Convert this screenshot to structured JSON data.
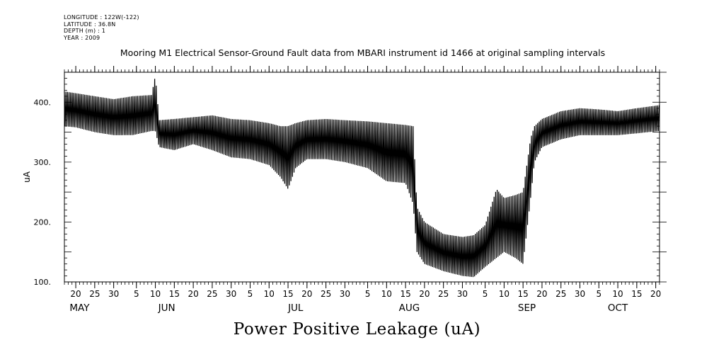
{
  "metadata": {
    "longitude": "LONGITUDE : 122W(-122)",
    "latitude": "LATITUDE : 36.8N",
    "depth": "DEPTH (m) : 1",
    "year": "YEAR : 2009"
  },
  "chart_data": {
    "type": "line",
    "title": "Mooring M1 Electrical Sensor-Ground Fault data from MBARI instrument id 1466 at original sampling intervals",
    "bottom_title": "Power Positive Leakage (uA)",
    "ylabel": "uA",
    "xlabel": "",
    "ylim": [
      100,
      450
    ],
    "yticks": [
      100,
      200,
      300,
      400
    ],
    "ytick_labels": [
      "100.",
      "200.",
      "300.",
      "400."
    ],
    "xlim": [
      "2009-05-17",
      "2009-10-21"
    ],
    "day_ticks": [
      "2009-05-20",
      "2009-05-25",
      "2009-05-30",
      "2009-06-05",
      "2009-06-10",
      "2009-06-15",
      "2009-06-20",
      "2009-06-25",
      "2009-06-30",
      "2009-07-05",
      "2009-07-10",
      "2009-07-15",
      "2009-07-20",
      "2009-07-25",
      "2009-07-30",
      "2009-08-05",
      "2009-08-10",
      "2009-08-15",
      "2009-08-20",
      "2009-08-25",
      "2009-08-30",
      "2009-09-05",
      "2009-09-10",
      "2009-09-15",
      "2009-09-20",
      "2009-09-25",
      "2009-09-30",
      "2009-10-05",
      "2009-10-10",
      "2009-10-15",
      "2009-10-20"
    ],
    "day_tick_labels": [
      "20",
      "25",
      "30",
      "5",
      "10",
      "15",
      "20",
      "25",
      "30",
      "5",
      "10",
      "15",
      "20",
      "25",
      "30",
      "5",
      "10",
      "15",
      "20",
      "25",
      "30",
      "5",
      "10",
      "15",
      "20",
      "25",
      "30",
      "5",
      "10",
      "15",
      "20"
    ],
    "month_labels": [
      {
        "label": "MAY",
        "date": "2009-05-21"
      },
      {
        "label": "JUN",
        "date": "2009-06-13"
      },
      {
        "label": "JUL",
        "date": "2009-07-17"
      },
      {
        "label": "AUG",
        "date": "2009-08-16"
      },
      {
        "label": "SEP",
        "date": "2009-09-16"
      },
      {
        "label": "OCT",
        "date": "2009-10-10"
      }
    ],
    "series": [
      {
        "color": "#000000",
        "envelope": [
          {
            "date": "2009-05-17",
            "low": 360,
            "high": 418
          },
          {
            "date": "2009-05-20",
            "low": 358,
            "high": 415
          },
          {
            "date": "2009-05-25",
            "low": 350,
            "high": 410
          },
          {
            "date": "2009-05-30",
            "low": 345,
            "high": 405
          },
          {
            "date": "2009-06-04",
            "low": 345,
            "high": 410
          },
          {
            "date": "2009-06-09",
            "low": 352,
            "high": 412
          },
          {
            "date": "2009-06-10",
            "low": 352,
            "high": 445
          },
          {
            "date": "2009-06-11",
            "low": 325,
            "high": 370
          },
          {
            "date": "2009-06-15",
            "low": 320,
            "high": 372
          },
          {
            "date": "2009-06-20",
            "low": 330,
            "high": 375
          },
          {
            "date": "2009-06-25",
            "low": 320,
            "high": 378
          },
          {
            "date": "2009-06-30",
            "low": 308,
            "high": 372
          },
          {
            "date": "2009-07-05",
            "low": 305,
            "high": 370
          },
          {
            "date": "2009-07-10",
            "low": 295,
            "high": 365
          },
          {
            "date": "2009-07-13",
            "low": 275,
            "high": 360
          },
          {
            "date": "2009-07-15",
            "low": 255,
            "high": 360
          },
          {
            "date": "2009-07-17",
            "low": 290,
            "high": 365
          },
          {
            "date": "2009-07-20",
            "low": 305,
            "high": 370
          },
          {
            "date": "2009-07-25",
            "low": 305,
            "high": 372
          },
          {
            "date": "2009-07-30",
            "low": 300,
            "high": 370
          },
          {
            "date": "2009-08-05",
            "low": 290,
            "high": 368
          },
          {
            "date": "2009-08-10",
            "low": 268,
            "high": 365
          },
          {
            "date": "2009-08-15",
            "low": 265,
            "high": 362
          },
          {
            "date": "2009-08-17",
            "low": 230,
            "high": 360
          },
          {
            "date": "2009-08-18",
            "low": 150,
            "high": 225
          },
          {
            "date": "2009-08-20",
            "low": 130,
            "high": 200
          },
          {
            "date": "2009-08-25",
            "low": 118,
            "high": 180
          },
          {
            "date": "2009-08-30",
            "low": 110,
            "high": 175
          },
          {
            "date": "2009-09-02",
            "low": 108,
            "high": 178
          },
          {
            "date": "2009-09-05",
            "low": 125,
            "high": 195
          },
          {
            "date": "2009-09-08",
            "low": 140,
            "high": 255
          },
          {
            "date": "2009-09-10",
            "low": 150,
            "high": 240
          },
          {
            "date": "2009-09-13",
            "low": 140,
            "high": 245
          },
          {
            "date": "2009-09-15",
            "low": 130,
            "high": 250
          },
          {
            "date": "2009-09-17",
            "low": 240,
            "high": 340
          },
          {
            "date": "2009-09-18",
            "low": 300,
            "high": 360
          },
          {
            "date": "2009-09-20",
            "low": 325,
            "high": 372
          },
          {
            "date": "2009-09-25",
            "low": 338,
            "high": 385
          },
          {
            "date": "2009-09-30",
            "low": 345,
            "high": 390
          },
          {
            "date": "2009-10-05",
            "low": 345,
            "high": 388
          },
          {
            "date": "2009-10-10",
            "low": 345,
            "high": 385
          },
          {
            "date": "2009-10-15",
            "low": 348,
            "high": 390
          },
          {
            "date": "2009-10-21",
            "low": 352,
            "high": 395
          }
        ]
      }
    ]
  }
}
